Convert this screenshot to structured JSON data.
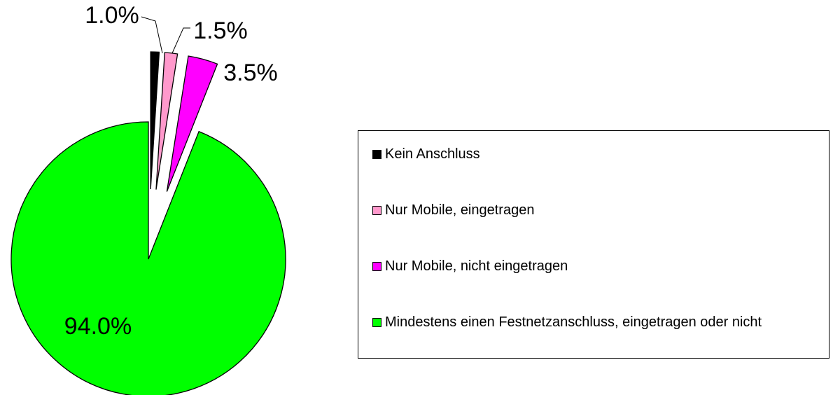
{
  "chart_data": {
    "type": "pie",
    "categories": [
      "Kein Anschluss",
      "Nur Mobile, eingetragen",
      "Nur Mobile, nicht eingetragen",
      "Mindestens einen Festnetzanschluss, eingetragen oder nicht"
    ],
    "values": [
      1.0,
      1.5,
      3.5,
      94.0
    ],
    "value_labels": [
      "1.0%",
      "1.5%",
      "3.5%",
      "94.0%"
    ],
    "colors": [
      "#000000",
      "#ff99cc",
      "#ff00ff",
      "#00ff00"
    ]
  }
}
